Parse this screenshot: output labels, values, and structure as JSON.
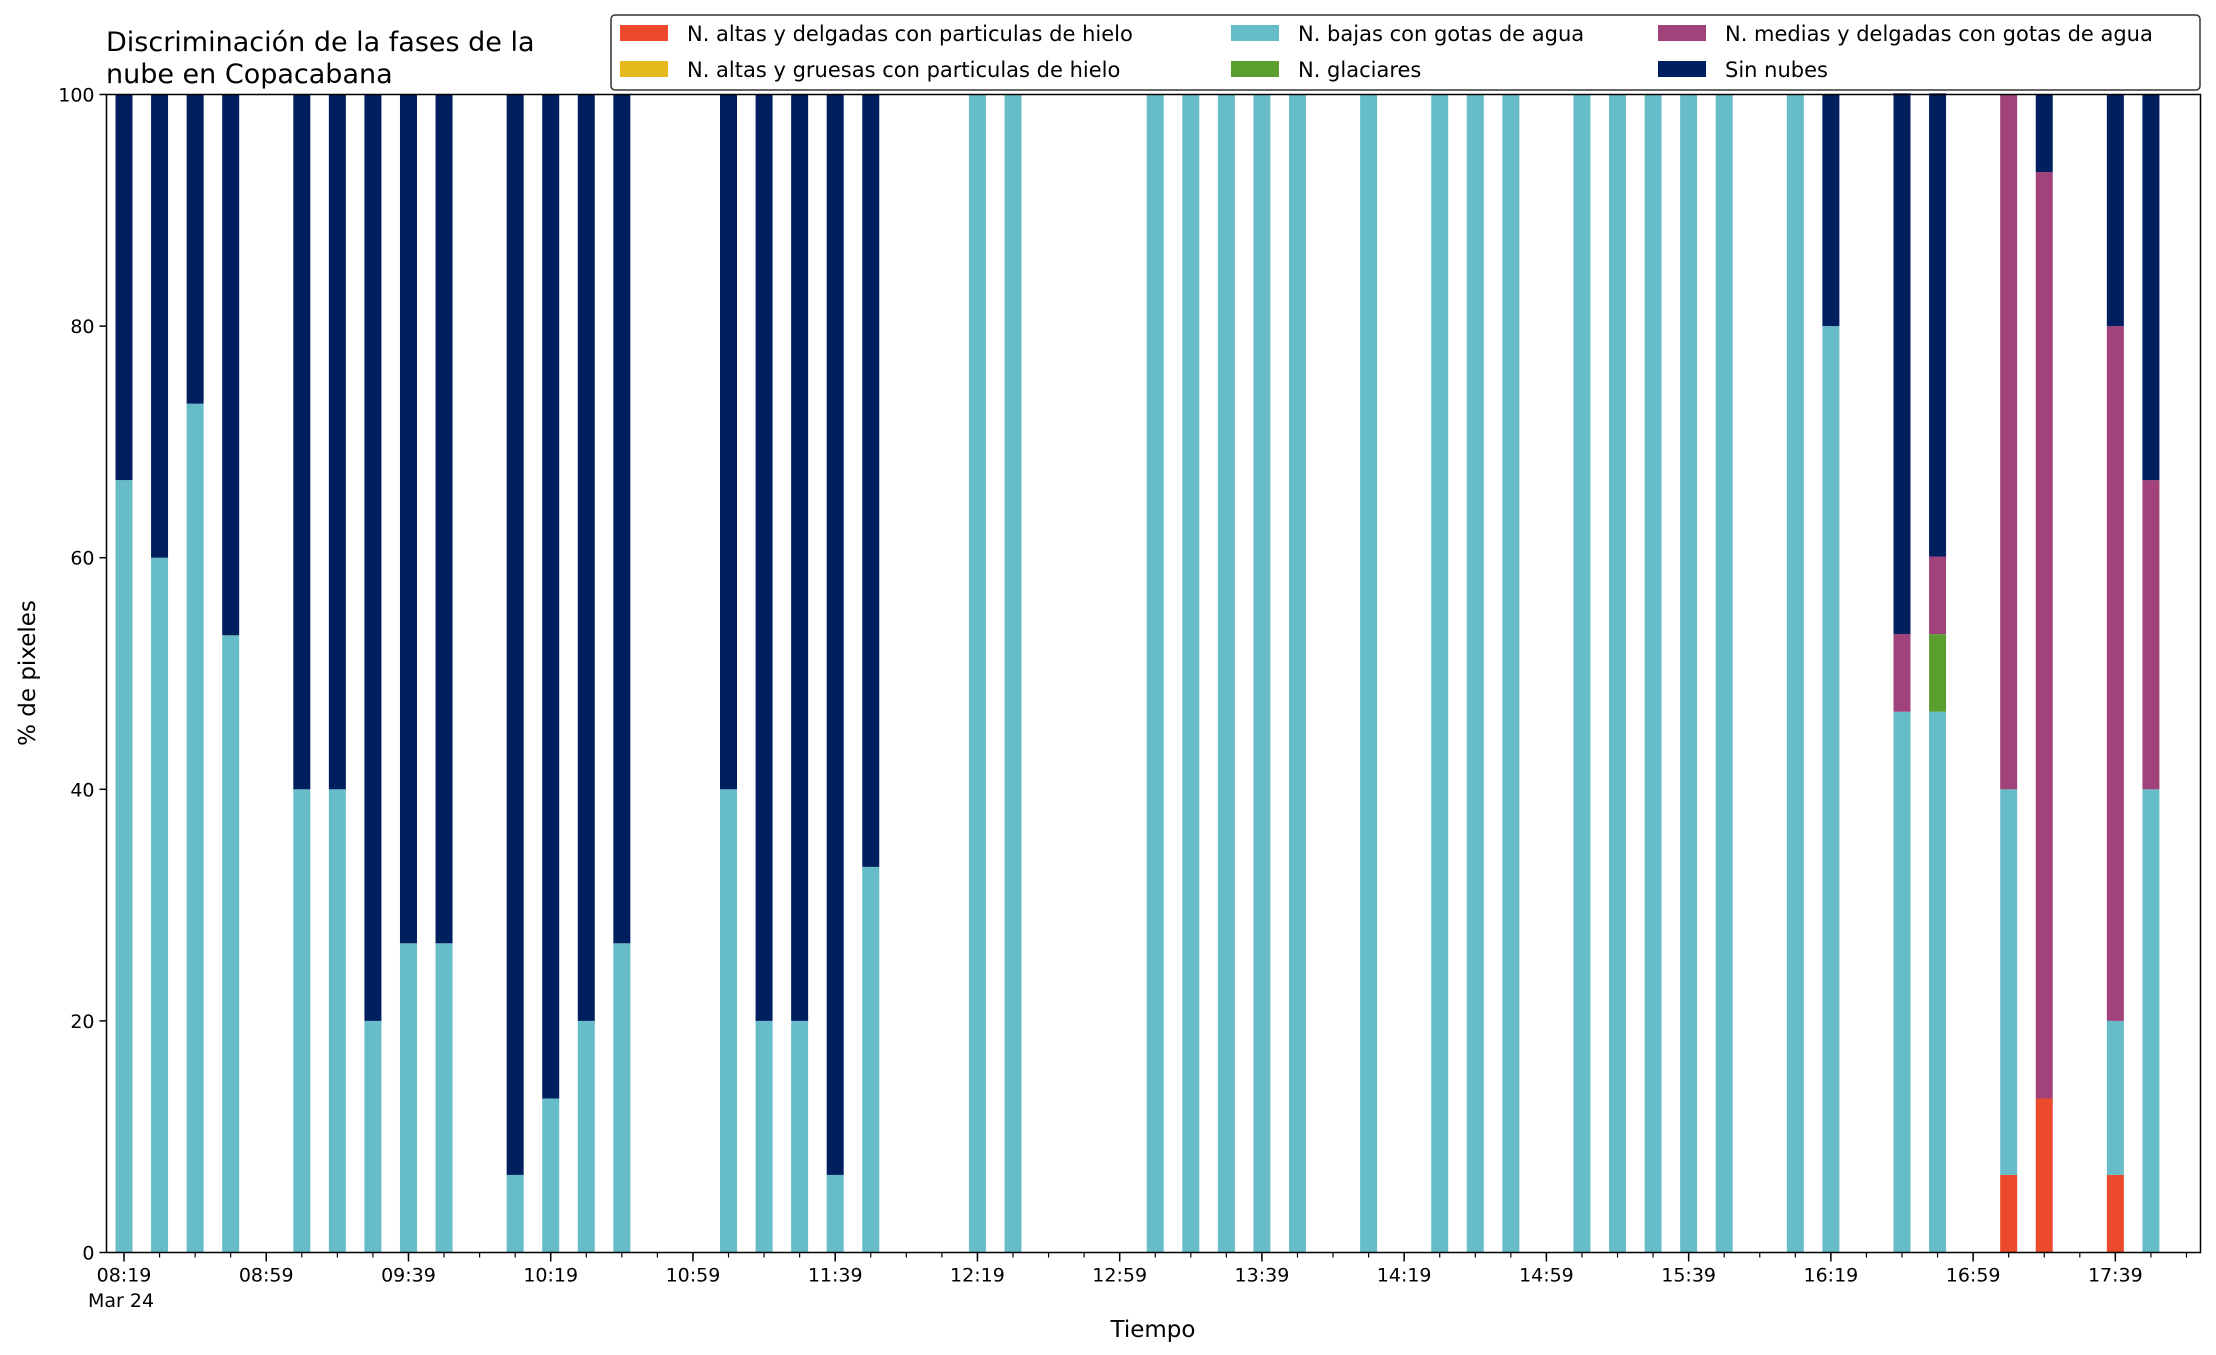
{
  "chart_data": {
    "type": "bar",
    "stacked": true,
    "title_lines": [
      "Discriminación de la fases de la",
      "nube en Copacabana"
    ],
    "xlabel": "Tiempo",
    "ylabel": "% de pixeles",
    "ylim": [
      0,
      100
    ],
    "yticks": [
      "0",
      "20",
      "40",
      "60",
      "80",
      "100"
    ],
    "x_minor_step_minutes": 10,
    "x_tick_labels": [
      "08:19",
      "08:59",
      "09:39",
      "10:19",
      "10:59",
      "11:39",
      "12:19",
      "12:59",
      "13:39",
      "14:19",
      "14:59",
      "15:39",
      "16:19",
      "16:59",
      "17:39"
    ],
    "x_date_label": "Mar 24",
    "legend_position": "top-right",
    "legend_columns": 3,
    "series": [
      {
        "name": "N. altas y delgadas con particulas de hielo",
        "color": "#ec4a2c"
      },
      {
        "name": "N. altas y gruesas con particulas de hielo",
        "color": "#e5b81c"
      },
      {
        "name": "N. bajas con gotas de agua",
        "color": "#66bdc9"
      },
      {
        "name": "N. glaciares",
        "color": "#5a9e2f"
      },
      {
        "name": "N. medias y delgadas con gotas de agua",
        "color": "#a1437a"
      },
      {
        "name": "Sin nubes",
        "color": "#001f5f"
      }
    ],
    "bars": [
      {
        "time": "08:19",
        "values": [
          0,
          0,
          66.7,
          0,
          0,
          33.3
        ]
      },
      {
        "time": "08:29",
        "values": [
          0,
          0,
          60.0,
          0,
          0,
          40.0
        ]
      },
      {
        "time": "08:39",
        "values": [
          0,
          0,
          73.3,
          0,
          0,
          26.7
        ]
      },
      {
        "time": "08:49",
        "values": [
          0,
          0,
          53.3,
          0,
          0,
          46.7
        ]
      },
      {
        "time": "09:09",
        "values": [
          0,
          0,
          40.0,
          0,
          0,
          60.0
        ]
      },
      {
        "time": "09:19",
        "values": [
          0,
          0,
          40.0,
          0,
          0,
          60.0
        ]
      },
      {
        "time": "09:29",
        "values": [
          0,
          0,
          20.0,
          0,
          0,
          80.0
        ]
      },
      {
        "time": "09:39",
        "values": [
          0,
          0,
          26.7,
          0,
          0,
          73.3
        ]
      },
      {
        "time": "09:49",
        "values": [
          0,
          0,
          26.7,
          0,
          0,
          73.3
        ]
      },
      {
        "time": "10:09",
        "values": [
          0,
          0,
          6.7,
          0,
          0,
          93.3
        ]
      },
      {
        "time": "10:19",
        "values": [
          0,
          0,
          13.3,
          0,
          0,
          86.7
        ]
      },
      {
        "time": "10:29",
        "values": [
          0,
          0,
          20.0,
          0,
          0,
          80.0
        ]
      },
      {
        "time": "10:39",
        "values": [
          0,
          0,
          26.7,
          0,
          0,
          73.3
        ]
      },
      {
        "time": "11:09",
        "values": [
          0,
          0,
          40.0,
          0,
          0,
          60.0
        ]
      },
      {
        "time": "11:19",
        "values": [
          0,
          0,
          20.0,
          0,
          0,
          80.0
        ]
      },
      {
        "time": "11:29",
        "values": [
          0,
          0,
          20.0,
          0,
          0,
          80.0
        ]
      },
      {
        "time": "11:39",
        "values": [
          0,
          0,
          6.7,
          0,
          0,
          93.3
        ]
      },
      {
        "time": "11:49",
        "values": [
          0,
          0,
          33.3,
          0,
          0,
          66.7
        ]
      },
      {
        "time": "12:19",
        "values": [
          0,
          0,
          100,
          0,
          0,
          0
        ]
      },
      {
        "time": "12:29",
        "values": [
          0,
          0,
          100,
          0,
          0,
          0
        ]
      },
      {
        "time": "13:09",
        "values": [
          0,
          0,
          100,
          0,
          0,
          0
        ]
      },
      {
        "time": "13:19",
        "values": [
          0,
          0,
          100,
          0,
          0,
          0
        ]
      },
      {
        "time": "13:29",
        "values": [
          0,
          0,
          100,
          0,
          0,
          0
        ]
      },
      {
        "time": "13:39",
        "values": [
          0,
          0,
          100,
          0,
          0,
          0
        ]
      },
      {
        "time": "13:49",
        "values": [
          0,
          0,
          100,
          0,
          0,
          0
        ]
      },
      {
        "time": "14:09",
        "values": [
          0,
          0,
          100,
          0,
          0,
          0
        ]
      },
      {
        "time": "14:29",
        "values": [
          0,
          0,
          100,
          0,
          0,
          0
        ]
      },
      {
        "time": "14:39",
        "values": [
          0,
          0,
          100,
          0,
          0,
          0
        ]
      },
      {
        "time": "14:49",
        "values": [
          0,
          0,
          100,
          0,
          0,
          0
        ]
      },
      {
        "time": "15:09",
        "values": [
          0,
          0,
          100,
          0,
          0,
          0
        ]
      },
      {
        "time": "15:19",
        "values": [
          0,
          0,
          100,
          0,
          0,
          0
        ]
      },
      {
        "time": "15:29",
        "values": [
          0,
          0,
          100,
          0,
          0,
          0
        ]
      },
      {
        "time": "15:39",
        "values": [
          0,
          0,
          100,
          0,
          0,
          0
        ]
      },
      {
        "time": "15:49",
        "values": [
          0,
          0,
          100,
          0,
          0,
          0
        ]
      },
      {
        "time": "16:09",
        "values": [
          0,
          0,
          100,
          0,
          0,
          0
        ]
      },
      {
        "time": "16:19",
        "values": [
          0,
          0,
          80.0,
          0,
          0,
          20.0
        ]
      },
      {
        "time": "16:39",
        "values": [
          0,
          0,
          46.7,
          0,
          6.7,
          46.7
        ]
      },
      {
        "time": "16:49",
        "values": [
          0,
          0,
          46.7,
          6.7,
          6.7,
          40.0
        ]
      },
      {
        "time": "17:09",
        "values": [
          6.7,
          0,
          33.3,
          0,
          60.0,
          0
        ]
      },
      {
        "time": "17:19",
        "values": [
          13.3,
          0,
          0,
          0,
          80.0,
          6.7
        ]
      },
      {
        "time": "17:39",
        "values": [
          6.7,
          0,
          13.3,
          0,
          60.0,
          20.0
        ]
      },
      {
        "time": "17:49",
        "values": [
          0,
          0,
          40.0,
          0,
          26.7,
          33.3
        ]
      }
    ]
  }
}
